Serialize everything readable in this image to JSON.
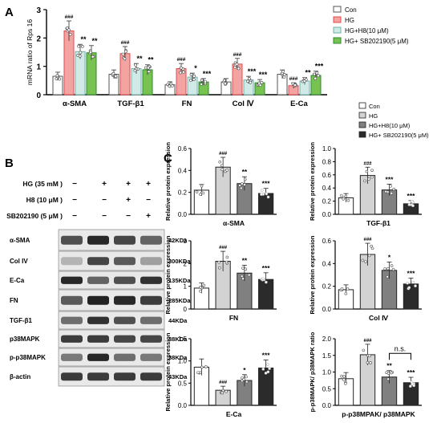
{
  "panel_labels": {
    "a": "A",
    "b": "B",
    "c": "C"
  },
  "colors": {
    "con": "#ffffff",
    "hg": "#f4a3a3",
    "hg_h8": "#cfeae7",
    "hg_sb": "#78c252",
    "gray_con": "#ffffff",
    "gray_hg": "#d3d3d3",
    "gray_h8": "#808080",
    "gray_sb": "#2b2b2b",
    "hg_border": "#e34b4b",
    "h8_border": "#6fb1a9",
    "sb_border": "#2f8a2f"
  },
  "chart_data": [
    {
      "type": "bar",
      "id": "A",
      "ylabel": "mRNA ratio of Rps 16",
      "ylim": [
        0,
        3
      ],
      "yticks": [
        0,
        1,
        2,
        3
      ],
      "categories": [
        "α-SMA",
        "TGF-β1",
        "FN",
        "Col Ⅳ",
        "E-Ca"
      ],
      "series": [
        {
          "name": "Con",
          "values": [
            0.65,
            0.72,
            0.35,
            0.45,
            0.72
          ]
        },
        {
          "name": "HG",
          "values": [
            2.25,
            1.45,
            0.92,
            1.08,
            0.32
          ]
        },
        {
          "name": "HG+H8(10 μM)",
          "values": [
            1.52,
            0.92,
            0.62,
            0.52,
            0.48
          ]
        },
        {
          "name": "HG+ SB202190(5 μM)",
          "values": [
            1.48,
            0.88,
            0.45,
            0.42,
            0.68
          ]
        }
      ],
      "annotations": [
        [
          "",
          "###",
          "**",
          "**"
        ],
        [
          "",
          "###",
          "**",
          "**"
        ],
        [
          "",
          "###",
          "*",
          "***"
        ],
        [
          "",
          "###",
          "***",
          "***"
        ],
        [
          "",
          "###",
          "**",
          "***"
        ]
      ]
    },
    {
      "type": "bar",
      "id": "C1",
      "xlabel": "α-SMA",
      "ylabel": "Relative protein expression",
      "ylim": [
        0,
        0.6
      ],
      "yticks": [
        "0.0",
        "0.2",
        "0.4",
        "0.6"
      ],
      "values": [
        0.22,
        0.43,
        0.28,
        0.19
      ],
      "annotations": [
        "",
        "###",
        "**",
        "***"
      ]
    },
    {
      "type": "bar",
      "id": "C2",
      "xlabel": "TGF-β1",
      "ylabel": "Relative protein expression",
      "ylim": [
        0,
        1.0
      ],
      "yticks": [
        "0.0",
        "0.2",
        "0.4",
        "0.6",
        "0.8",
        "1.0"
      ],
      "values": [
        0.25,
        0.59,
        0.37,
        0.16
      ],
      "annotations": [
        "",
        "###",
        "***",
        "***"
      ]
    },
    {
      "type": "bar",
      "id": "C3",
      "xlabel": "FN",
      "ylabel": "Relative protein expression",
      "ylim": [
        0,
        3
      ],
      "yticks": [
        "0",
        "1",
        "2",
        "3"
      ],
      "values": [
        0.92,
        2.1,
        1.58,
        1.3
      ],
      "annotations": [
        "",
        "###",
        "**",
        "***"
      ]
    },
    {
      "type": "bar",
      "id": "C4",
      "xlabel": "Col Ⅳ",
      "ylabel": "Relative protein expression",
      "ylim": [
        0,
        0.6
      ],
      "yticks": [
        "0.0",
        "0.2",
        "0.4",
        "0.6"
      ],
      "values": [
        0.17,
        0.48,
        0.34,
        0.22
      ],
      "annotations": [
        "",
        "###",
        "*",
        "***"
      ]
    },
    {
      "type": "bar",
      "id": "C5",
      "xlabel": "E-Ca",
      "ylabel": "Relative protein expression",
      "ylim": [
        0,
        1.5
      ],
      "yticks": [
        "0.0",
        "0.5",
        "1.0",
        "1.5"
      ],
      "values": [
        0.86,
        0.34,
        0.56,
        0.84
      ],
      "annotations": [
        "",
        "###",
        "*",
        "***"
      ]
    },
    {
      "type": "bar",
      "id": "C6",
      "xlabel": "p-p38MPAK/ p38MAPK",
      "ylabel": "p-p38MAPK/ p38MAPK ratio",
      "ylim": [
        0,
        2.0
      ],
      "yticks": [
        "0.0",
        "0.5",
        "1.0",
        "1.5",
        "2.0"
      ],
      "values": [
        0.8,
        1.52,
        0.85,
        0.68
      ],
      "annotations": [
        "",
        "###",
        "**",
        "***"
      ],
      "bracket_label": "n.s."
    }
  ],
  "legend_a": [
    "Con",
    "HG",
    "HG+H8(10 μM)",
    "HG+ SB202190(5 μM)"
  ],
  "legend_c": [
    "Con",
    "HG",
    "HG+H8(10 μM)",
    "HG+ SB202190(5 μM)"
  ],
  "western": {
    "treatments": [
      {
        "label": "HG (35 mM )",
        "marks": [
          "−",
          "+",
          "+",
          "+"
        ]
      },
      {
        "label": "H8  (10 μM )",
        "marks": [
          "−",
          "−",
          "+",
          "−"
        ]
      },
      {
        "label": "SB202190 (5 μM )",
        "marks": [
          "−",
          "−",
          "−",
          "+"
        ]
      }
    ],
    "bands": [
      {
        "name": "α-SMA",
        "size": "42KDa"
      },
      {
        "name": "Col IV",
        "size": "300KDa"
      },
      {
        "name": "E-Ca",
        "size": "135KDa"
      },
      {
        "name": "FN",
        "size": "285KDa"
      },
      {
        "name": "TGF-β1",
        "size": "44KDa"
      },
      {
        "name": "p38MAPK",
        "size": "38KDa"
      },
      {
        "name": "p-p38MAPK",
        "size": "38KDa"
      },
      {
        "name": "β-actin",
        "size": "43KDa"
      }
    ]
  }
}
